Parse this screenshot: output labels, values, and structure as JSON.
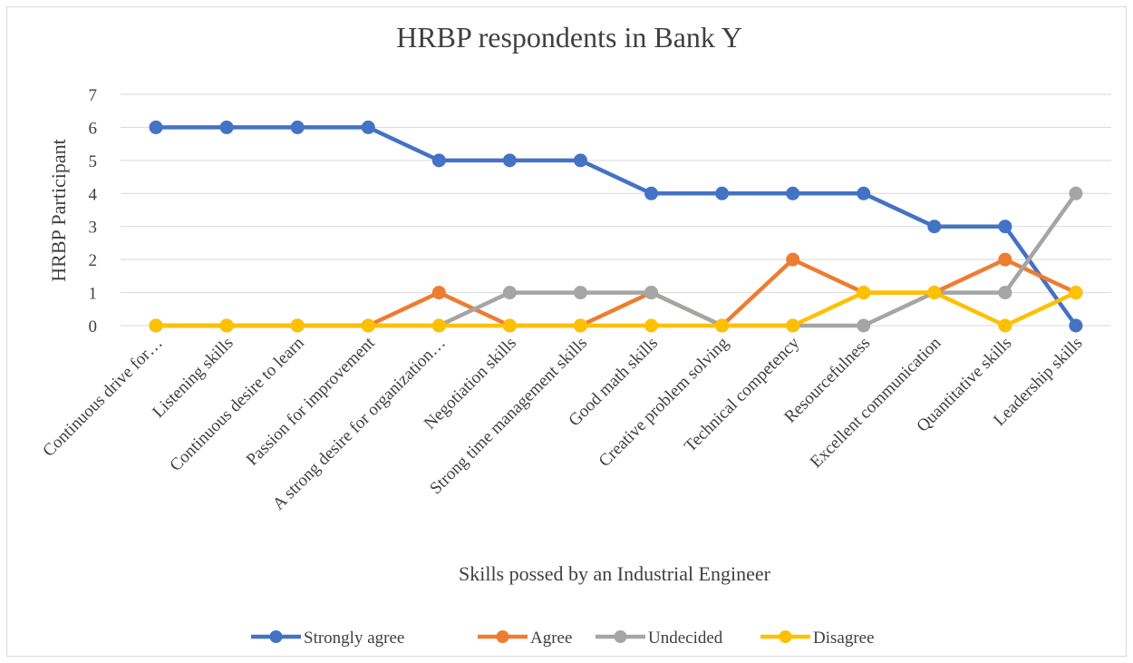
{
  "chart_data": {
    "type": "line",
    "title": "HRBP respondents in Bank Y",
    "xlabel": "Skills possed by an Industrial Engineer",
    "ylabel": "HRBP Participant",
    "ylim": [
      0,
      7
    ],
    "yticks": [
      0,
      1,
      2,
      3,
      4,
      5,
      6,
      7
    ],
    "grid": true,
    "legend_position": "bottom",
    "categories": [
      "Continuous drive for…",
      "Listening skills",
      "Continuous desire to learn",
      "Passion for improvement",
      "A strong desire for organization…",
      "Negotiation skills",
      "Strong time management skills",
      "Good math skills",
      "Creative problem solving",
      "Technical competency",
      "Resourcefulness",
      "Excellent communication",
      "Quantitative skills",
      "Leadership skills"
    ],
    "series": [
      {
        "name": "Strongly agree",
        "color": "#4472c4",
        "values": [
          6,
          6,
          6,
          6,
          5,
          5,
          5,
          4,
          4,
          4,
          4,
          3,
          3,
          0
        ]
      },
      {
        "name": "Agree",
        "color": "#ed7d31",
        "values": [
          0,
          0,
          0,
          0,
          1,
          0,
          0,
          1,
          0,
          2,
          1,
          1,
          2,
          1
        ]
      },
      {
        "name": "Undecided",
        "color": "#a5a5a5",
        "values": [
          0,
          0,
          0,
          0,
          0,
          1,
          1,
          1,
          0,
          0,
          0,
          1,
          1,
          4
        ]
      },
      {
        "name": "Disagree",
        "color": "#ffc000",
        "values": [
          0,
          0,
          0,
          0,
          0,
          0,
          0,
          0,
          0,
          0,
          1,
          1,
          0,
          1
        ]
      }
    ]
  }
}
